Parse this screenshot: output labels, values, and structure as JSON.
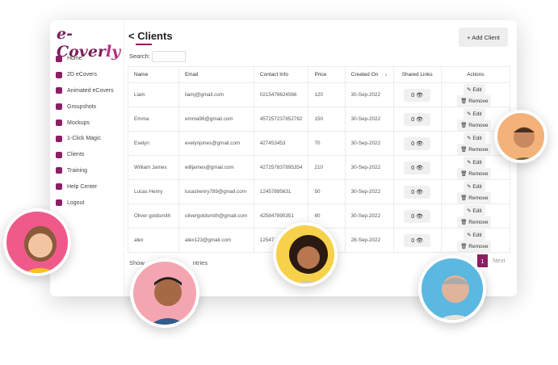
{
  "logo": {
    "text_a": "e-Cover",
    "text_b": "ly"
  },
  "sidebar": {
    "items": [
      {
        "label": "Home"
      },
      {
        "label": "2D eCovers"
      },
      {
        "label": "Animated eCovers"
      },
      {
        "label": "Groupshots"
      },
      {
        "label": "Mockups"
      },
      {
        "label": "1-Click Magic"
      },
      {
        "label": "Clients"
      },
      {
        "label": "Training"
      },
      {
        "label": "Help Center"
      },
      {
        "label": "Logout"
      }
    ]
  },
  "header": {
    "back": "<",
    "title": "Clients",
    "add_label": "+ Add Client",
    "search_label": "Search:",
    "search_value": ""
  },
  "table": {
    "columns": [
      "Name",
      "Email",
      "Contact Info",
      "Price",
      "Created On",
      "Shared Links",
      "Actions"
    ],
    "rows": [
      [
        "Liam",
        "liamj@gmail.com",
        "0215478624566",
        "120",
        "30-Sep-2022",
        "0"
      ],
      [
        "Emma",
        "emma98@gmail.com",
        "457257237852782",
        "150",
        "30-Sep-2022",
        "0"
      ],
      [
        "Evelyn",
        "evelynjones@gmail.com",
        "427453453",
        "70",
        "30-Sep-2022",
        "0"
      ],
      [
        "William James",
        "willjames@gmail.com",
        "427257837895354",
        "210",
        "30-Sep-2022",
        "0"
      ],
      [
        "Lucas Henry",
        "lucashenry789@gmail.com",
        "12457895631",
        "50",
        "30-Sep-2022",
        "0"
      ],
      [
        "Oliver goldsmith",
        "olivergoldsmith@gmail.com",
        "425847895351",
        "80",
        "30-Sep-2022",
        "0"
      ],
      [
        "alex",
        "alex123@gmail.com",
        "12547",
        "",
        "28-Sep-2022",
        "0"
      ]
    ],
    "edit_label": "✎ Edit",
    "remove_label": "🗑 Remove",
    "sort_icon": "↓"
  },
  "footer": {
    "show": "Show",
    "entries": "ntries",
    "page": "1",
    "next": "Next"
  },
  "colors": {
    "accent": "#8b1f63"
  }
}
